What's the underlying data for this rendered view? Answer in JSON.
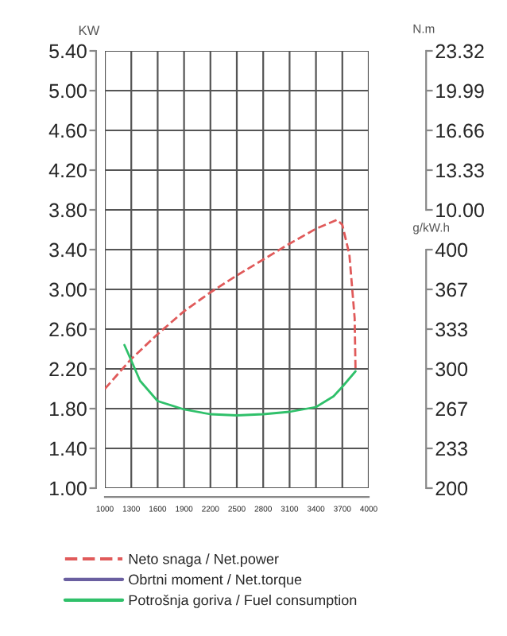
{
  "chart_data": {
    "type": "line",
    "ylabel": "KW",
    "y2label": "g/kW.h",
    "y3label": "N.m",
    "xlim": [
      1000,
      4000
    ],
    "xticks": [
      1000,
      1300,
      1600,
      1900,
      2200,
      2500,
      2800,
      3100,
      3400,
      3700,
      4000
    ],
    "ylim": [
      1.0,
      5.4
    ],
    "yticks": [
      {
        "value": 1.0,
        "label": "1.00"
      },
      {
        "value": 1.4,
        "label": "1.40"
      },
      {
        "value": 1.8,
        "label": "1.80"
      },
      {
        "value": 2.2,
        "label": "2.20"
      },
      {
        "value": 2.6,
        "label": "2.60"
      },
      {
        "value": 3.0,
        "label": "3.00"
      },
      {
        "value": 3.4,
        "label": "3.40"
      },
      {
        "value": 3.8,
        "label": "3.80"
      },
      {
        "value": 4.2,
        "label": "4.20"
      },
      {
        "value": 4.6,
        "label": "4.60"
      },
      {
        "value": 5.0,
        "label": "5.00"
      },
      {
        "value": 5.4,
        "label": "5.40"
      }
    ],
    "y2lim": [
      200,
      566.67
    ],
    "y2ticks": [
      200,
      {
        "value": 233.33,
        "label": "233"
      },
      {
        "value": 266.67,
        "label": "267"
      },
      300,
      {
        "value": 333.33,
        "label": "333"
      },
      {
        "value": 366.67,
        "label": "367"
      },
      400
    ],
    "y3lim": [
      -13.31,
      23.32
    ],
    "y3ticks": [
      {
        "value": 10.0,
        "label": "10.00"
      },
      {
        "value": 13.33,
        "label": "13.33"
      },
      {
        "value": 16.66,
        "label": "16.66"
      },
      {
        "value": 19.99,
        "label": "19.99"
      },
      {
        "value": 23.32,
        "label": "23.32"
      }
    ],
    "grid": true,
    "legend": "bottom",
    "series": [
      {
        "name": "Neto snaga / Net.power",
        "color": "#e05a5a",
        "line_style": "dashed",
        "x": [
          1000,
          1300,
          1600,
          1900,
          2200,
          2500,
          2800,
          3100,
          3400,
          3640,
          3700,
          3780,
          3840,
          3850
        ],
        "values": [
          2.0,
          2.3,
          2.55,
          2.78,
          2.97,
          3.14,
          3.3,
          3.46,
          3.61,
          3.7,
          3.65,
          3.35,
          2.71,
          2.18
        ]
      },
      {
        "name": "Obrtni moment / Net.torque",
        "color": "#6a5fa0",
        "line_style": "solid",
        "axis": "y3"
      },
      {
        "name": "Potrošnja goriva / Fuel consumption",
        "color": "#2fc06a",
        "line_style": "solid",
        "axis": "y2",
        "x": [
          1222,
          1300,
          1400,
          1600,
          1900,
          2200,
          2500,
          2800,
          3100,
          3400,
          3600,
          3700,
          3850
        ],
        "values": [
          320,
          307,
          290,
          273,
          266,
          262,
          261,
          262,
          264,
          268,
          277,
          285,
          298
        ]
      }
    ]
  }
}
